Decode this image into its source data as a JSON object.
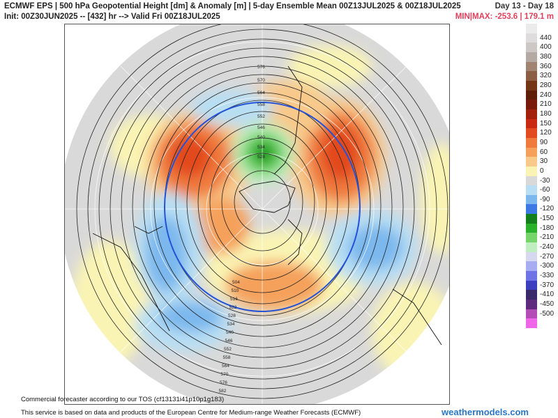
{
  "header": {
    "line1": "ECMWF EPS | 500 hPa Geopotential Height [dm] & Anomaly [m] | 5-day Ensemble Mean 00Z13JUL2025 & 00Z18JUL2025",
    "line2": "Init: 00Z30JUN2025 -- [432] hr --> Valid Fri 00Z18JUL2025",
    "day_range": "Day 13 - Day 18",
    "minmax": "MIN|MAX: -253.6 | 179.1 m"
  },
  "colorbar": [
    {
      "label": "",
      "color": "#ecebeb"
    },
    {
      "label": "440",
      "color": "#dedcdc"
    },
    {
      "label": "400",
      "color": "#cdc8c6"
    },
    {
      "label": "380",
      "color": "#b5aaa3"
    },
    {
      "label": "360",
      "color": "#a18471"
    },
    {
      "label": "320",
      "color": "#8c5e43"
    },
    {
      "label": "280",
      "color": "#743616"
    },
    {
      "label": "240",
      "color": "#5e1e08"
    },
    {
      "label": "210",
      "color": "#7a1a0b"
    },
    {
      "label": "180",
      "color": "#a3200d"
    },
    {
      "label": "150",
      "color": "#c92b12"
    },
    {
      "label": "120",
      "color": "#e24a1f"
    },
    {
      "label": "90",
      "color": "#ef7a3c"
    },
    {
      "label": "60",
      "color": "#f5a15c"
    },
    {
      "label": "30",
      "color": "#f8c98a"
    },
    {
      "label": "0",
      "color": "#faf4b4"
    },
    {
      "label": "-30",
      "color": "#d9d9d9"
    },
    {
      "label": "-60",
      "color": "#b8def3"
    },
    {
      "label": "-90",
      "color": "#7cb8ee"
    },
    {
      "label": "-120",
      "color": "#3c79e4"
    },
    {
      "label": "-150",
      "color": "#13801d"
    },
    {
      "label": "-180",
      "color": "#29b12c"
    },
    {
      "label": "-210",
      "color": "#76d56a"
    },
    {
      "label": "-240",
      "color": "#bfeec0"
    },
    {
      "label": "-270",
      "color": "#d6d8f0"
    },
    {
      "label": "-300",
      "color": "#a8acf0"
    },
    {
      "label": "-330",
      "color": "#6e73e6"
    },
    {
      "label": "-370",
      "color": "#3c3fbe"
    },
    {
      "label": "-410",
      "color": "#3a2a6a"
    },
    {
      "label": "-450",
      "color": "#5e2b7e"
    },
    {
      "label": "-500",
      "color": "#b44cb6"
    },
    {
      "label": "",
      "color": "#f066e8"
    }
  ],
  "contour_labels": [
    "576",
    "570",
    "564",
    "558",
    "552",
    "546",
    "540",
    "534",
    "528",
    "522",
    "516",
    "510",
    "504",
    "582",
    "588"
  ],
  "overlay_note": "Commercial forecaster according to our TOS (cf13131i41p10p1g183)",
  "footer": {
    "credit": "This service is based on data and products of the European Centre for Medium-range Weather Forecasts (ECMWF)",
    "brand": "weathermodels.com"
  }
}
